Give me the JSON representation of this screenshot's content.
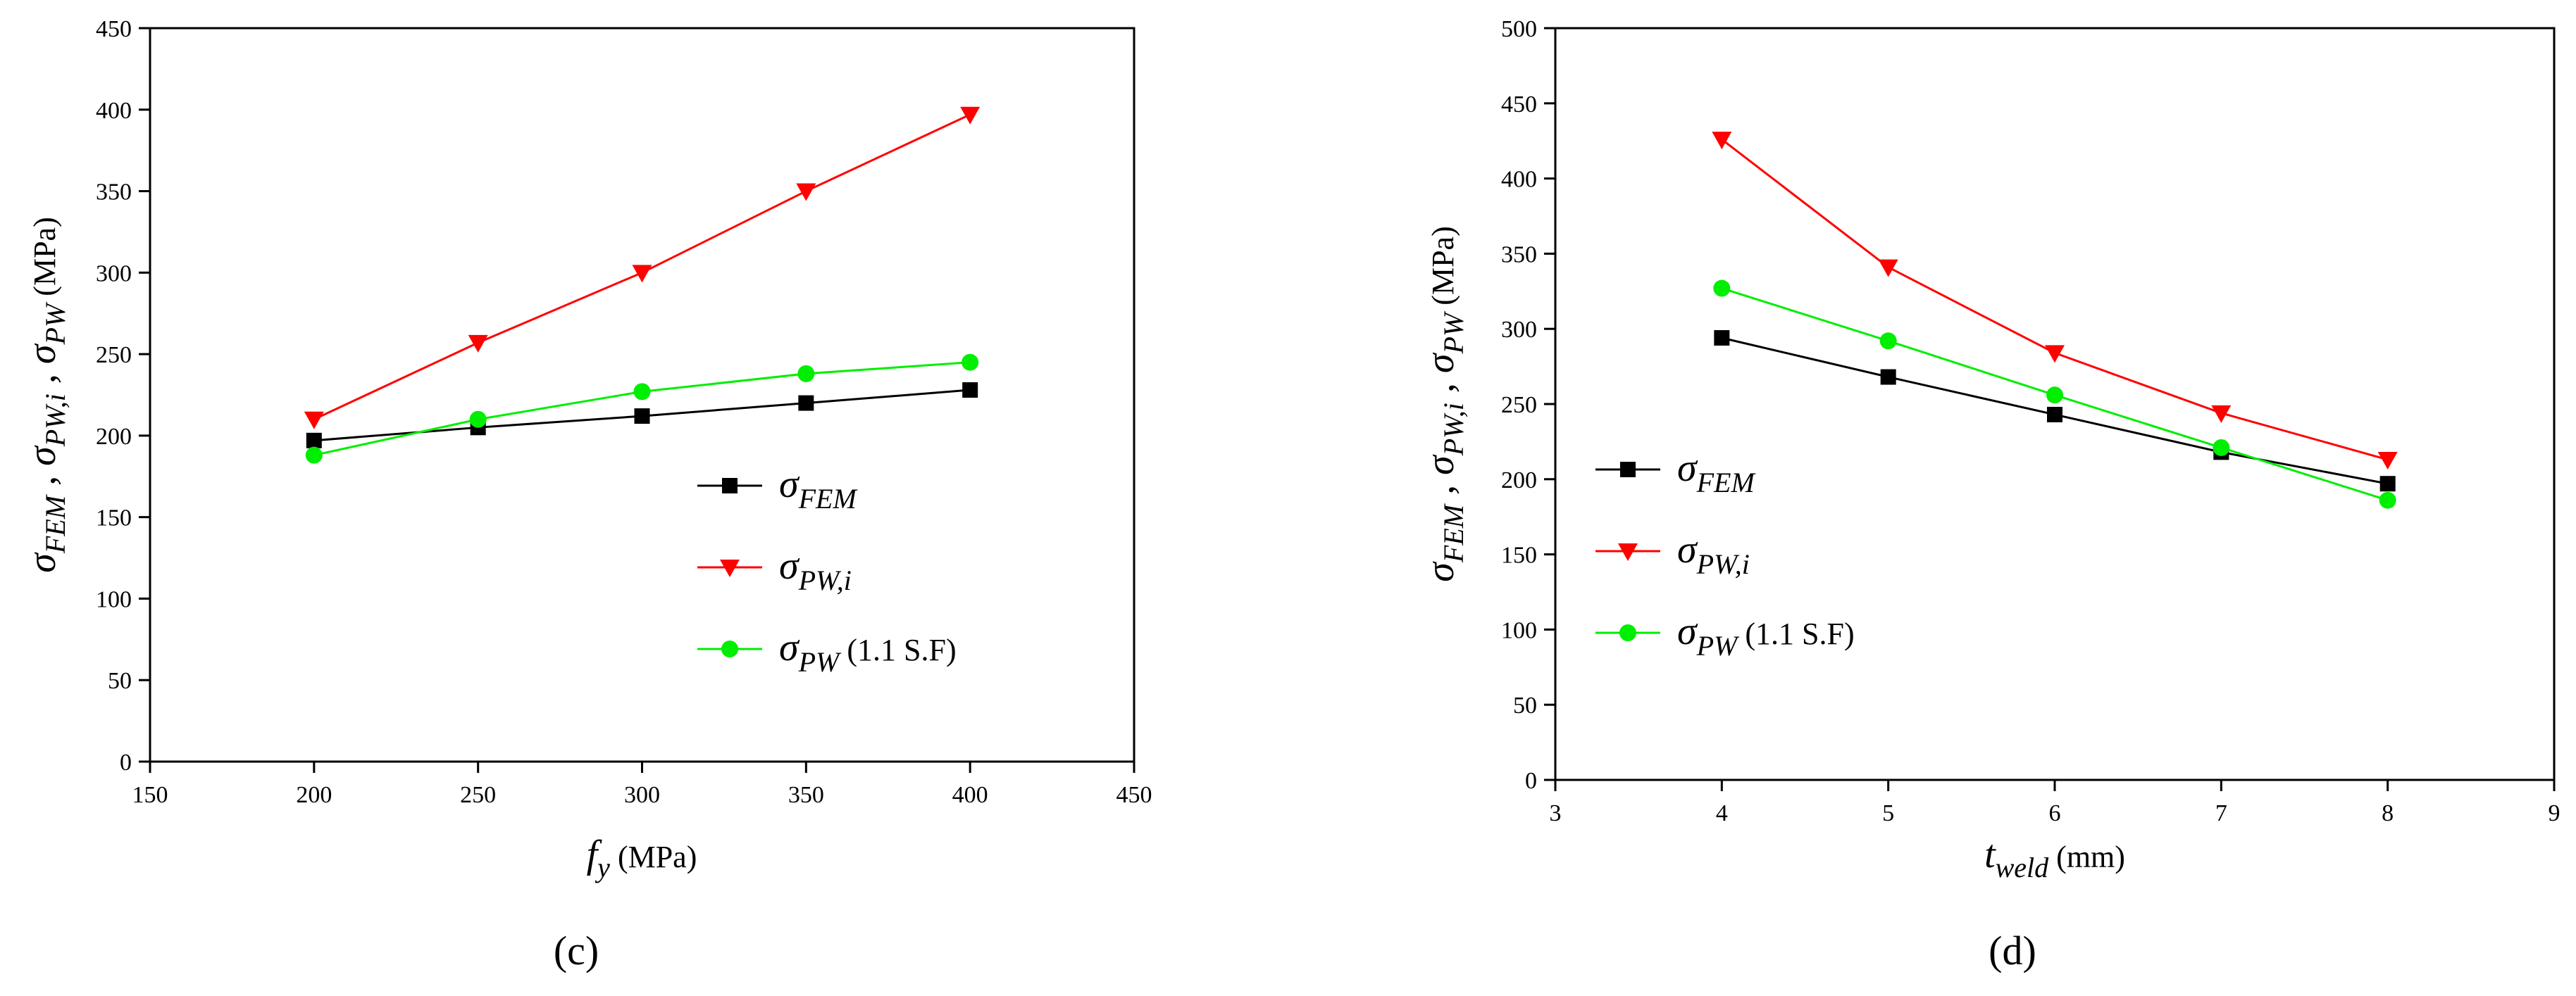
{
  "chart_data": [
    {
      "type": "line",
      "panel_label": "(c)",
      "xlabel": {
        "var": "f",
        "sub": "y",
        "unit": "(MPa)"
      },
      "ylabel": "σFEM , σPW,i , σPW (MPa)",
      "xlim": [
        150,
        450
      ],
      "ylim": [
        0,
        450
      ],
      "xticks": [
        150,
        200,
        250,
        300,
        350,
        400,
        450
      ],
      "yticks": [
        0,
        50,
        100,
        150,
        200,
        250,
        300,
        350,
        400,
        450
      ],
      "legend_position": "lower-right",
      "x": [
        200,
        250,
        300,
        350,
        400
      ],
      "series": [
        {
          "name": "σFEM",
          "sym": "σ",
          "sub": "FEM",
          "extra": "",
          "color": "#000000",
          "marker": "square",
          "values": [
            197,
            205,
            212,
            220,
            228
          ]
        },
        {
          "name": "σPW,i",
          "sym": "σ",
          "sub": "PW,i",
          "extra": "",
          "color": "#ff0000",
          "marker": "triangle-down",
          "values": [
            210,
            257,
            300,
            350,
            397
          ]
        },
        {
          "name": "σPW (1.1 S.F)",
          "sym": "σ",
          "sub": "PW",
          "extra": "(1.1 S.F)",
          "color": "#00ee00",
          "marker": "circle",
          "values": [
            188,
            210,
            227,
            238,
            245
          ]
        }
      ]
    },
    {
      "type": "line",
      "panel_label": "(d)",
      "xlabel": {
        "var": "t",
        "sub": "weld",
        "unit": "(mm)"
      },
      "ylabel": "σFEM , σPW,i , σPW (MPa)",
      "xlim": [
        3,
        9
      ],
      "ylim": [
        0,
        500
      ],
      "xticks": [
        3,
        4,
        5,
        6,
        7,
        8,
        9
      ],
      "yticks": [
        0,
        50,
        100,
        150,
        200,
        250,
        300,
        350,
        400,
        450,
        500
      ],
      "legend_position": "center-left",
      "x": [
        4,
        5,
        6,
        7,
        8
      ],
      "series": [
        {
          "name": "σFEM",
          "sym": "σ",
          "sub": "FEM",
          "extra": "",
          "color": "#000000",
          "marker": "square",
          "values": [
            294,
            268,
            243,
            218,
            197
          ]
        },
        {
          "name": "σPW,i",
          "sym": "σ",
          "sub": "PW,i",
          "extra": "",
          "color": "#ff0000",
          "marker": "triangle-down",
          "values": [
            426,
            341,
            284,
            244,
            213
          ]
        },
        {
          "name": "σPW (1.1 S.F)",
          "sym": "σ",
          "sub": "PW",
          "extra": "(1.1 S.F)",
          "color": "#00ee00",
          "marker": "circle",
          "values": [
            327,
            292,
            256,
            221,
            186
          ]
        }
      ]
    }
  ]
}
